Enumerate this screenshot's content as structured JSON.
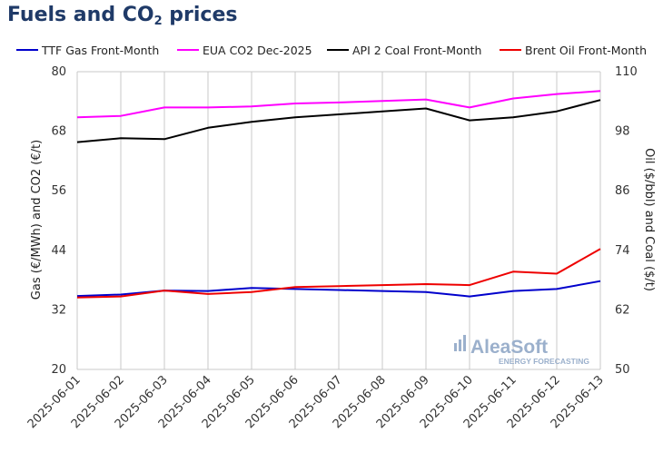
{
  "title_main": "Fuels and CO",
  "title_sub": "2",
  "title_tail": " prices",
  "watermark": {
    "brand": "AleaSoft",
    "tagline": "ENERGY FORECASTING"
  },
  "chart_data": {
    "type": "line",
    "x": [
      "2025-06-01",
      "2025-06-02",
      "2025-06-03",
      "2025-06-04",
      "2025-06-05",
      "2025-06-06",
      "2025-06-07",
      "2025-06-08",
      "2025-06-09",
      "2025-06-10",
      "2025-06-11",
      "2025-06-12",
      "2025-06-13"
    ],
    "ylabel": "Gas (€/MWh) and CO2 (€/t)",
    "y2label": "Oil ($/bbl) and Coal ($/t)",
    "ylim": [
      20,
      80
    ],
    "y2lim": [
      50,
      110
    ],
    "yticks": [
      20,
      32,
      44,
      56,
      68,
      80
    ],
    "y2ticks": [
      50,
      62,
      74,
      86,
      98,
      110
    ],
    "grid": "vertical",
    "legend_position": "top",
    "series": [
      {
        "name": "TTF Gas Front-Month",
        "axis": "left",
        "color": "#0000cc",
        "values": [
          34.8,
          35.1,
          35.9,
          35.8,
          36.4,
          36.2,
          36.0,
          35.8,
          35.6,
          34.7,
          35.8,
          36.2,
          37.8
        ]
      },
      {
        "name": "EUA CO2 Dec-2025",
        "axis": "left",
        "color": "#ff00ff",
        "values": [
          70.8,
          71.1,
          72.8,
          72.8,
          73.0,
          73.6,
          73.8,
          74.1,
          74.4,
          72.8,
          74.6,
          75.5,
          76.1
        ]
      },
      {
        "name": "API 2 Coal Front-Month",
        "axis": "right",
        "color": "#000000",
        "values": [
          95.8,
          96.6,
          96.4,
          98.7,
          99.9,
          100.8,
          101.4,
          102.0,
          102.6,
          100.2,
          100.8,
          102.0,
          104.3
        ]
      },
      {
        "name": "Brent Oil Front-Month",
        "axis": "right",
        "color": "#ee0000",
        "values": [
          64.5,
          64.7,
          65.9,
          65.2,
          65.6,
          66.6,
          66.8,
          67.0,
          67.2,
          67.0,
          69.7,
          69.3,
          74.3
        ]
      }
    ]
  }
}
